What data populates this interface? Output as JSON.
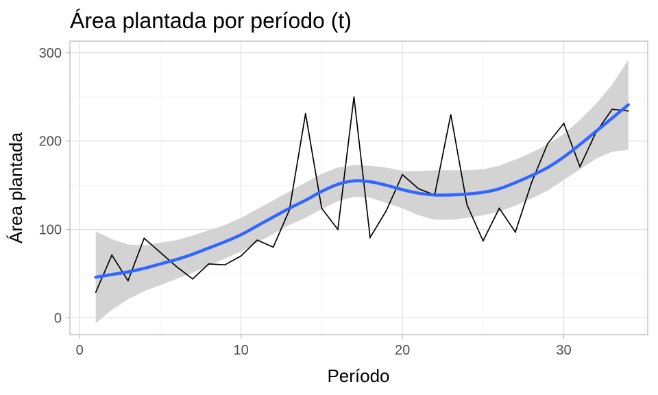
{
  "chart_data": {
    "type": "line",
    "title": "Área plantada por período (t)",
    "xlabel": "Período",
    "ylabel": "Área plantada",
    "xlim": [
      -0.6,
      35.2
    ],
    "ylim": [
      -19,
      313
    ],
    "x_ticks": [
      0,
      10,
      20,
      30
    ],
    "x_tick_labels": [
      "0",
      "10",
      "20",
      "30"
    ],
    "y_ticks": [
      0,
      100,
      200,
      300
    ],
    "y_tick_labels": [
      "0",
      "100",
      "200",
      "300"
    ],
    "grid": true,
    "series": [
      {
        "kind": "observed",
        "color": "#000000",
        "x": [
          1,
          2,
          3,
          4,
          5,
          6,
          7,
          8,
          9,
          10,
          11,
          12,
          13,
          14,
          15,
          16,
          17,
          18,
          19,
          20,
          21,
          22,
          23,
          24,
          25,
          26,
          27,
          28,
          29,
          30,
          31,
          32,
          33,
          34
        ],
        "y": [
          29,
          71,
          42,
          90,
          74,
          58,
          44,
          61,
          60,
          70,
          88,
          80,
          122,
          231,
          124,
          100,
          250,
          91,
          121,
          162,
          146,
          139,
          230,
          128,
          87,
          124,
          97,
          153,
          197,
          220,
          171,
          210,
          236,
          234
        ]
      },
      {
        "kind": "smooth",
        "color": "#3366ff",
        "band_color": "#d3d3d3",
        "x": [
          1,
          2,
          3,
          4,
          5,
          6,
          7,
          8,
          9,
          10,
          11,
          12,
          13,
          14,
          15,
          16,
          17,
          18,
          19,
          20,
          21,
          22,
          23,
          24,
          25,
          26,
          27,
          28,
          29,
          30,
          31,
          32,
          33,
          34
        ],
        "y": [
          46,
          49,
          52,
          56,
          61,
          66,
          72,
          79,
          86,
          94,
          104,
          114,
          124,
          133,
          143,
          151,
          155,
          154,
          150,
          145,
          141,
          139,
          139,
          140,
          142,
          146,
          153,
          161,
          170,
          182,
          196,
          211,
          226,
          241
        ],
        "ymin": [
          -6,
          9,
          21,
          30,
          37,
          44,
          51,
          59,
          67,
          75,
          85,
          95,
          105,
          113,
          123,
          132,
          137,
          136,
          130,
          124,
          116,
          111,
          111,
          113,
          116,
          120,
          127,
          135,
          144,
          156,
          168,
          180,
          188,
          190
        ],
        "ymax": [
          98,
          89,
          83,
          82,
          85,
          88,
          93,
          99,
          105,
          113,
          123,
          133,
          143,
          153,
          163,
          170,
          173,
          172,
          170,
          166,
          166,
          167,
          167,
          167,
          168,
          172,
          179,
          187,
          196,
          208,
          224,
          242,
          264,
          292
        ]
      }
    ]
  }
}
